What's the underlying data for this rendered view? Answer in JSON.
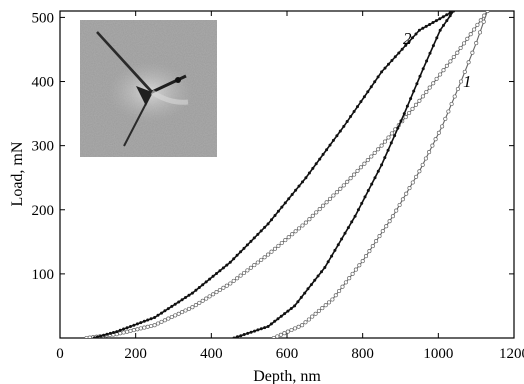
{
  "chart_data": {
    "type": "scatter",
    "xlabel": "Depth, nm",
    "ylabel": "Load, mN",
    "xlim": [
      0,
      1200
    ],
    "ylim": [
      0,
      510
    ],
    "x_ticks": [
      0,
      200,
      400,
      600,
      800,
      1000,
      1200
    ],
    "y_ticks": [
      100,
      200,
      300,
      400,
      500
    ],
    "grid": false,
    "inset": "indentation-image",
    "series": [
      {
        "name": "1",
        "style": "hollow-markers",
        "color": "#666666",
        "loading": [
          [
            70,
            0
          ],
          [
            150,
            6
          ],
          [
            250,
            20
          ],
          [
            350,
            48
          ],
          [
            450,
            85
          ],
          [
            550,
            130
          ],
          [
            650,
            180
          ],
          [
            750,
            238
          ],
          [
            850,
            300
          ],
          [
            950,
            370
          ],
          [
            1050,
            445
          ],
          [
            1130,
            510
          ]
        ],
        "unloading": [
          [
            565,
            0
          ],
          [
            640,
            20
          ],
          [
            720,
            60
          ],
          [
            800,
            120
          ],
          [
            880,
            190
          ],
          [
            950,
            260
          ],
          [
            1010,
            330
          ],
          [
            1060,
            400
          ],
          [
            1100,
            460
          ],
          [
            1130,
            510
          ]
        ]
      },
      {
        "name": "2",
        "style": "filled-markers",
        "color": "#111111",
        "loading": [
          [
            90,
            0
          ],
          [
            150,
            10
          ],
          [
            250,
            32
          ],
          [
            350,
            70
          ],
          [
            450,
            118
          ],
          [
            550,
            178
          ],
          [
            650,
            250
          ],
          [
            750,
            330
          ],
          [
            850,
            415
          ],
          [
            950,
            480
          ],
          [
            1040,
            510
          ]
        ],
        "unloading": [
          [
            460,
            0
          ],
          [
            550,
            18
          ],
          [
            620,
            50
          ],
          [
            700,
            110
          ],
          [
            780,
            190
          ],
          [
            850,
            270
          ],
          [
            910,
            350
          ],
          [
            960,
            420
          ],
          [
            1005,
            480
          ],
          [
            1040,
            510
          ]
        ]
      }
    ]
  }
}
